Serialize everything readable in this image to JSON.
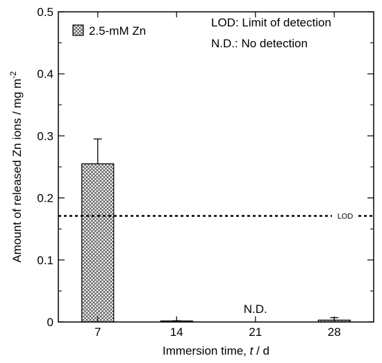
{
  "chart_data": {
    "type": "bar",
    "categories": [
      "7",
      "14",
      "21",
      "28"
    ],
    "series": [
      {
        "name": "2.5-mM Zn",
        "values": [
          0.255,
          0.001,
          0.0,
          0.003
        ],
        "error": [
          0.04,
          0.001,
          0.0,
          0.004
        ],
        "fill": "crosshatch"
      }
    ],
    "xlabel": "Immersion time, ",
    "xlabel_var": "t",
    "xlabel_unit": " / d",
    "ylabel": "Amount of released Zn ions / mg m",
    "ylabel_sup": "-2",
    "ylim": [
      0,
      0.5
    ],
    "yticks": [
      "0",
      "0.1",
      "0.2",
      "0.3",
      "0.4",
      "0.5"
    ],
    "ytick_values": [
      0,
      0.1,
      0.2,
      0.3,
      0.4,
      0.5
    ],
    "reference_line": {
      "label": "LOD",
      "value": 0.171,
      "style": "dotted"
    },
    "annotations": [
      {
        "text": "N.D.",
        "category": "21"
      }
    ],
    "notes": [
      "LOD: Limit of detection",
      "N.D.: No detection"
    ],
    "legend": {
      "position": "top-left"
    },
    "grid": false
  }
}
